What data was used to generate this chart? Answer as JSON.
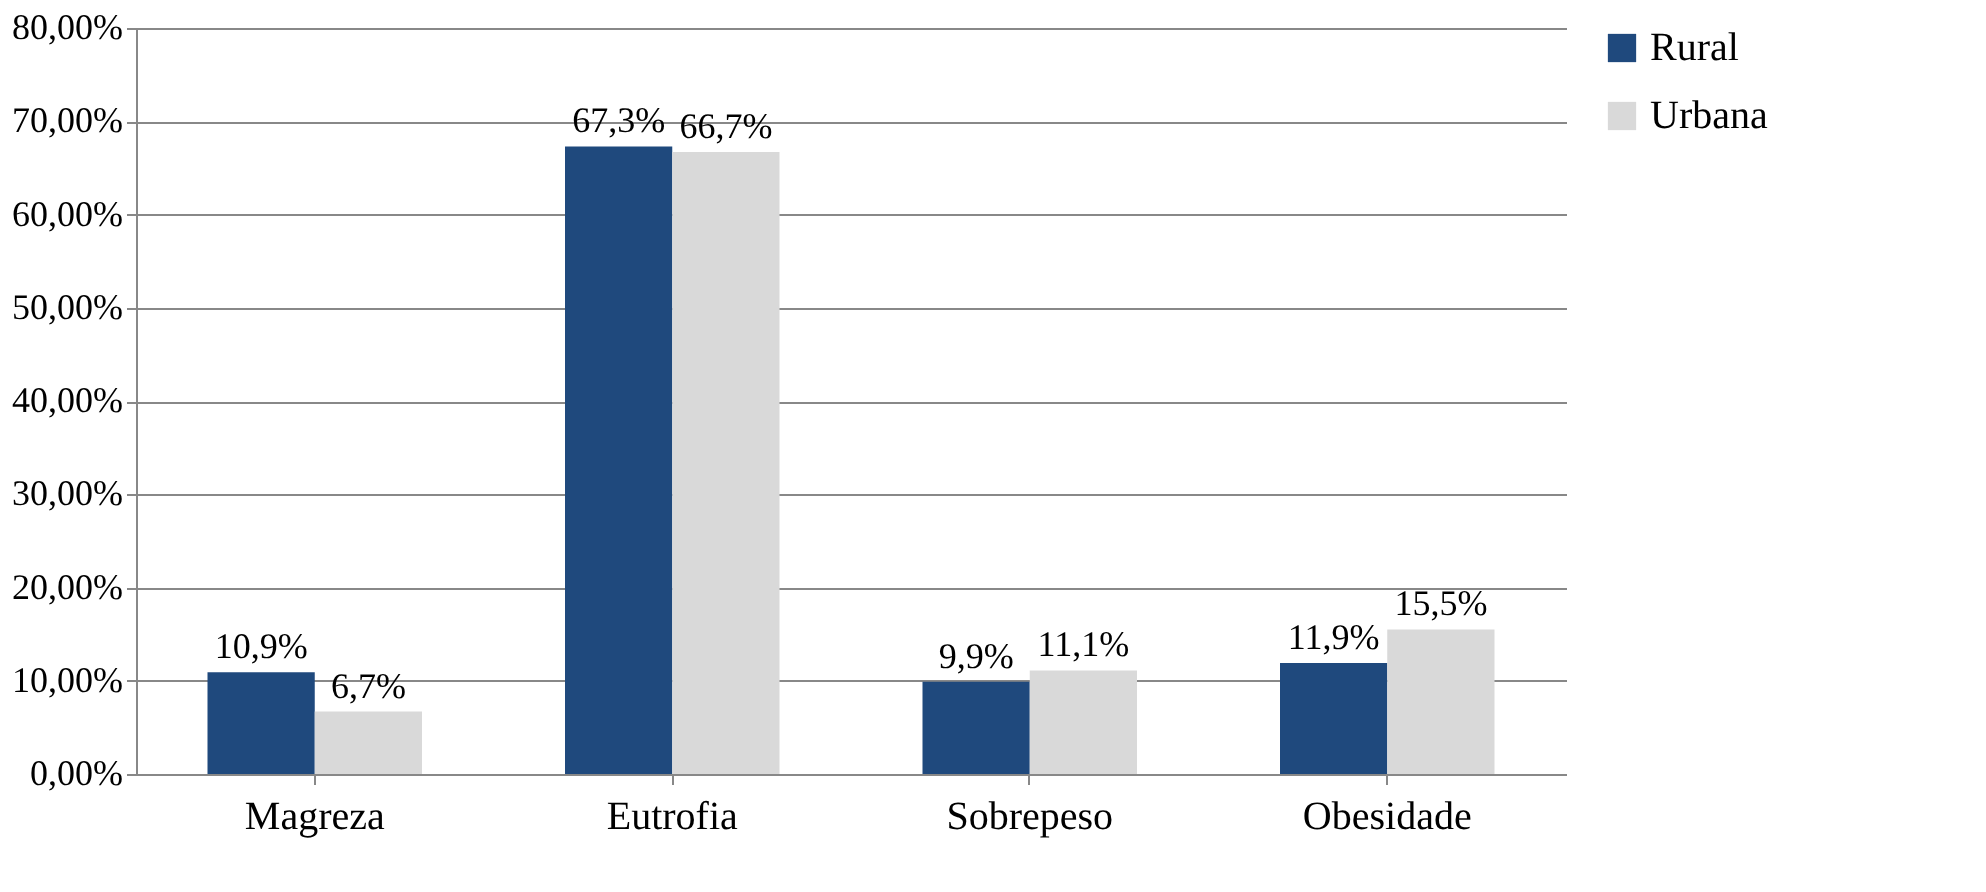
{
  "chart_data": {
    "type": "bar",
    "categories": [
      "Magreza",
      "Eutrofia",
      "Sobrepeso",
      "Obesidade"
    ],
    "series": [
      {
        "name": "Rural",
        "color": "#1f497d",
        "values": [
          10.9,
          67.3,
          9.9,
          11.9
        ],
        "value_labels": [
          "10,9%",
          "67,3%",
          "9,9%",
          "11,9%"
        ]
      },
      {
        "name": "Urbana",
        "color": "#d9d9d9",
        "values": [
          6.7,
          66.7,
          11.1,
          15.5
        ],
        "value_labels": [
          "6,7%",
          "66,7%",
          "11,1%",
          "15,5%"
        ]
      }
    ],
    "ylim": [
      0,
      80
    ],
    "yticks": [
      {
        "value": 0,
        "label": "0,00%"
      },
      {
        "value": 10,
        "label": "10,00%"
      },
      {
        "value": 20,
        "label": "20,00%"
      },
      {
        "value": 30,
        "label": "30,00%"
      },
      {
        "value": 40,
        "label": "40,00%"
      },
      {
        "value": 50,
        "label": "50,00%"
      },
      {
        "value": 60,
        "label": "60,00%"
      },
      {
        "value": 70,
        "label": "70,00%"
      },
      {
        "value": 80,
        "label": "80,00%"
      }
    ],
    "grid": "y",
    "legend": "right"
  }
}
